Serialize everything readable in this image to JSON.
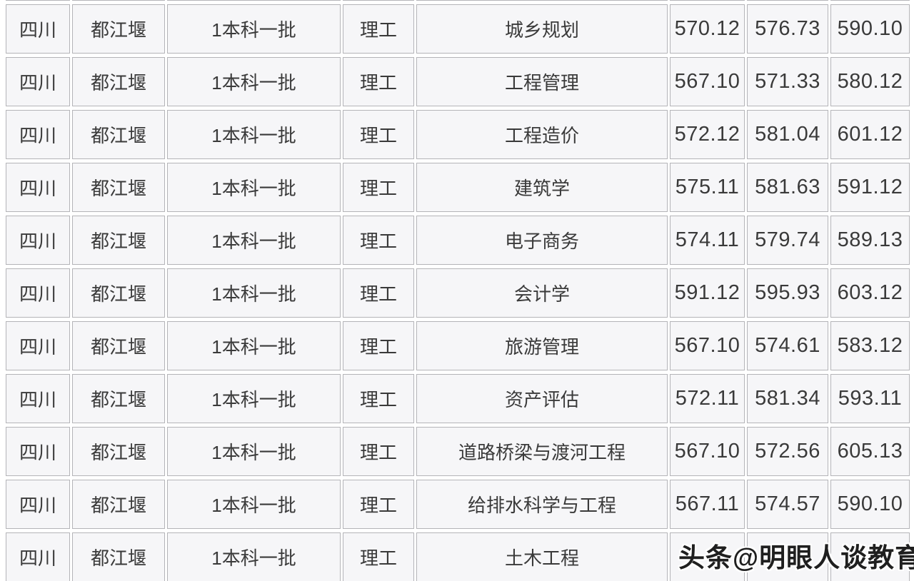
{
  "colors": {
    "cell_bg": "#f6f6f8",
    "border_color": "#b4b4b8",
    "text_color": "#3a3a3a",
    "watermark_color": "#1f1f1f"
  },
  "watermark": {
    "text": "头条@明眼人谈教育"
  },
  "table": {
    "rows": [
      {
        "province": "四川",
        "city": "都江堰",
        "batch": "1本科一批",
        "category": "理工",
        "major": "城乡规划",
        "score1": "570.12",
        "score2": "576.73",
        "score3": "590.10"
      },
      {
        "province": "四川",
        "city": "都江堰",
        "batch": "1本科一批",
        "category": "理工",
        "major": "工程管理",
        "score1": "567.10",
        "score2": "571.33",
        "score3": "580.12"
      },
      {
        "province": "四川",
        "city": "都江堰",
        "batch": "1本科一批",
        "category": "理工",
        "major": "工程造价",
        "score1": "572.12",
        "score2": "581.04",
        "score3": "601.12"
      },
      {
        "province": "四川",
        "city": "都江堰",
        "batch": "1本科一批",
        "category": "理工",
        "major": "建筑学",
        "score1": "575.11",
        "score2": "581.63",
        "score3": "591.12"
      },
      {
        "province": "四川",
        "city": "都江堰",
        "batch": "1本科一批",
        "category": "理工",
        "major": "电子商务",
        "score1": "574.11",
        "score2": "579.74",
        "score3": "589.13"
      },
      {
        "province": "四川",
        "city": "都江堰",
        "batch": "1本科一批",
        "category": "理工",
        "major": "会计学",
        "score1": "591.12",
        "score2": "595.93",
        "score3": "603.12"
      },
      {
        "province": "四川",
        "city": "都江堰",
        "batch": "1本科一批",
        "category": "理工",
        "major": "旅游管理",
        "score1": "567.10",
        "score2": "574.61",
        "score3": "583.12"
      },
      {
        "province": "四川",
        "city": "都江堰",
        "batch": "1本科一批",
        "category": "理工",
        "major": "资产评估",
        "score1": "572.11",
        "score2": "581.34",
        "score3": "593.11"
      },
      {
        "province": "四川",
        "city": "都江堰",
        "batch": "1本科一批",
        "category": "理工",
        "major": "道路桥梁与渡河工程",
        "score1": "567.10",
        "score2": "572.56",
        "score3": "605.13"
      },
      {
        "province": "四川",
        "city": "都江堰",
        "batch": "1本科一批",
        "category": "理工",
        "major": "给排水科学与工程",
        "score1": "567.11",
        "score2": "574.57",
        "score3": "590.10"
      },
      {
        "province": "四川",
        "city": "都江堰",
        "batch": "1本科一批",
        "category": "理工",
        "major": "土木工程",
        "score1": "",
        "score2": "",
        "score3": ""
      }
    ]
  }
}
